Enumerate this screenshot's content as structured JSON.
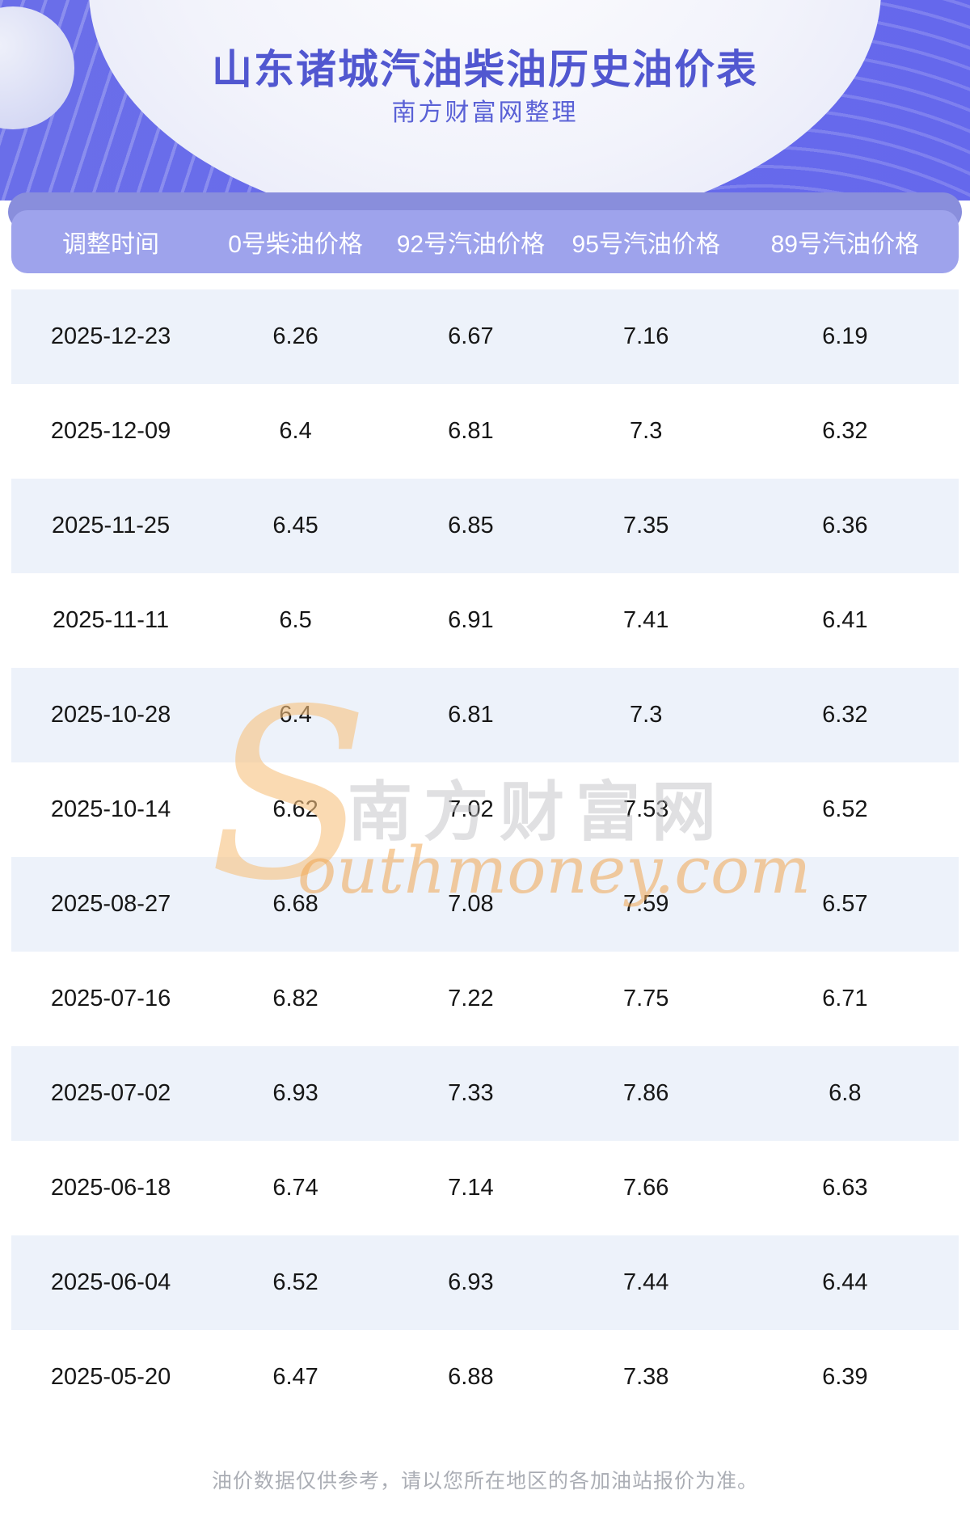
{
  "banner": {
    "title": "山东诸城汽油柴油历史油价表",
    "subtitle": "南方财富网整理"
  },
  "table": {
    "headers": [
      "调整时间",
      "0号柴油价格",
      "92号汽油价格",
      "95号汽油价格",
      "89号汽油价格"
    ],
    "rows": [
      [
        "2025-12-23",
        "6.26",
        "6.67",
        "7.16",
        "6.19"
      ],
      [
        "2025-12-09",
        "6.4",
        "6.81",
        "7.3",
        "6.32"
      ],
      [
        "2025-11-25",
        "6.45",
        "6.85",
        "7.35",
        "6.36"
      ],
      [
        "2025-11-11",
        "6.5",
        "6.91",
        "7.41",
        "6.41"
      ],
      [
        "2025-10-28",
        "6.4",
        "6.81",
        "7.3",
        "6.32"
      ],
      [
        "2025-10-14",
        "6.62",
        "7.02",
        "7.53",
        "6.52"
      ],
      [
        "2025-08-27",
        "6.68",
        "7.08",
        "7.59",
        "6.57"
      ],
      [
        "2025-07-16",
        "6.82",
        "7.22",
        "7.75",
        "6.71"
      ],
      [
        "2025-07-02",
        "6.93",
        "7.33",
        "7.86",
        "6.8"
      ],
      [
        "2025-06-18",
        "6.74",
        "7.14",
        "7.66",
        "6.63"
      ],
      [
        "2025-06-04",
        "6.52",
        "6.93",
        "7.44",
        "6.44"
      ],
      [
        "2025-05-20",
        "6.47",
        "6.88",
        "7.38",
        "6.39"
      ]
    ]
  },
  "watermark": {
    "initial": "S",
    "cn": "南方财富网",
    "en": "outhmoney.com"
  },
  "footer": {
    "disclaimer": "油价数据仅供参考，请以您所在地区的各加油站报价为准。"
  },
  "colors": {
    "bannerPurple": "#6568ec",
    "bannerPurpleL": "#6a6ee9",
    "headerBand": "#898edc",
    "headerBar": "#9ea3ec",
    "rowAlt": "#edf2fa",
    "title": "#5157d0",
    "subtitle": "#5a61d6",
    "watermarkOrange": "#f1a650",
    "footerGray": "#abaeb5"
  }
}
